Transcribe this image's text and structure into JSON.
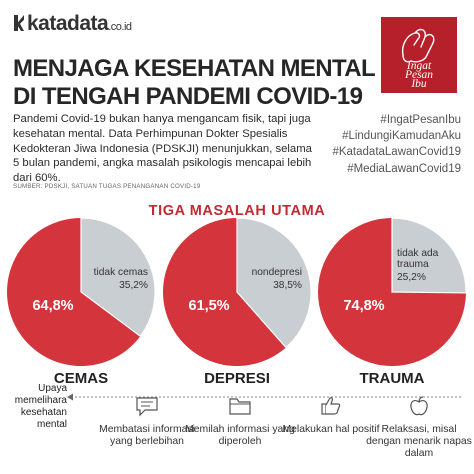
{
  "brand": {
    "logo": "katadata",
    "logo_suffix": ".co.id"
  },
  "badge": {
    "lines": [
      "Ingat",
      "Pesan",
      "Ibu"
    ]
  },
  "title": {
    "line1": "MENJAGA KESEHATAN MENTAL",
    "line2": "DI TENGAH PANDEMI COVID-19"
  },
  "intro": "Pandemi Covid-19 bukan hanya mengancam fisik, tapi juga kesehatan mental. Data Perhimpunan Dokter Spesialis Kedokteran Jiwa Indonesia (PDSKJI) menunjukkan, selama 5 bulan pandemi, angka masalah psikologis mencapai lebih dari 60%.",
  "source": "SUMBER: PDSKJI, SATUAN TUGAS PENANGANAN COVID-19",
  "hashtags": [
    "#IngatPesanIbu",
    "#LindungiKamudanAku",
    "#KatadataLawanCovid19",
    "#MediaLawanCovid19"
  ],
  "colors": {
    "accent": "#c22a33",
    "pie_main": "#d4343c",
    "pie_rest": "#c9ced3",
    "badge": "#b5202a"
  },
  "chart_data": {
    "type": "pie",
    "title": "TIGA MASALAH UTAMA",
    "charts": [
      {
        "name": "CEMAS",
        "slices": [
          {
            "label": "",
            "value": 64.8,
            "text": "64,8%"
          },
          {
            "label": "tidak cemas",
            "value": 35.2,
            "text": "35,2%"
          }
        ]
      },
      {
        "name": "DEPRESI",
        "slices": [
          {
            "label": "",
            "value": 61.5,
            "text": "61,5%"
          },
          {
            "label": "nondepresi",
            "value": 38.5,
            "text": "38,5%"
          }
        ]
      },
      {
        "name": "TRAUMA",
        "slices": [
          {
            "label": "",
            "value": 74.8,
            "text": "74,8%"
          },
          {
            "label": "tidak ada trauma",
            "value": 25.2,
            "text": "25,2%"
          }
        ]
      }
    ]
  },
  "steps": {
    "label": "Upaya memelihara kesehatan mental",
    "items": [
      {
        "icon": "speech-bubble-icon",
        "text": "Membatasi informasi yang berlebihan"
      },
      {
        "icon": "folder-icon",
        "text": "Memilah informasi yang diperoleh"
      },
      {
        "icon": "thumbs-up-icon",
        "text": "Melakukan hal positif"
      },
      {
        "icon": "apple-icon",
        "text": "Relaksasi, misal dengan menarik napas dalam"
      }
    ]
  }
}
